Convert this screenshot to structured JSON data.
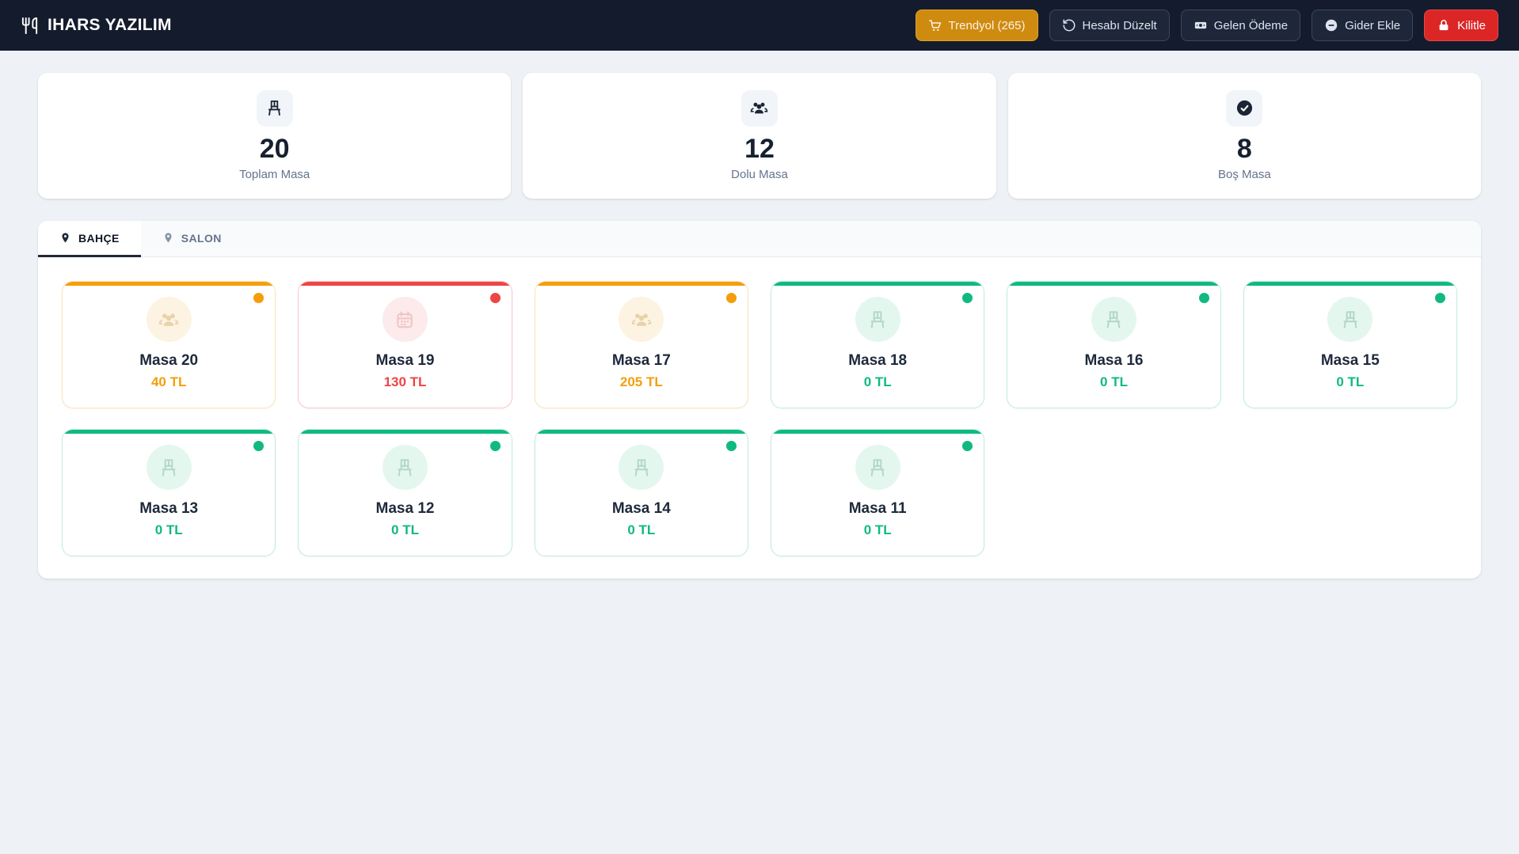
{
  "app": {
    "title": "IHARS YAZILIM"
  },
  "navbar": {
    "buttons": [
      {
        "label": "Trendyol (265)",
        "icon": "shopping-cart-icon",
        "style": "amber"
      },
      {
        "label": "Hesabı Düzelt",
        "icon": "rotate-ccw-icon",
        "style": "dark"
      },
      {
        "label": "Gelen Ödeme",
        "icon": "banknote-icon",
        "style": "dark"
      },
      {
        "label": "Gider Ekle",
        "icon": "minus-circle-icon",
        "style": "dark"
      },
      {
        "label": "Kilitle",
        "icon": "lock-icon",
        "style": "danger"
      }
    ]
  },
  "stats": [
    {
      "value": "20",
      "label": "Toplam Masa",
      "icon": "chair-icon"
    },
    {
      "value": "12",
      "label": "Dolu Masa",
      "icon": "users-icon"
    },
    {
      "value": "8",
      "label": "Boş Masa",
      "icon": "check-circle-icon"
    }
  ],
  "tabs": [
    {
      "label": "BAHÇE",
      "icon": "map-pin-icon",
      "active": true
    },
    {
      "label": "SALON",
      "icon": "map-pin-icon",
      "active": false
    }
  ],
  "tables": [
    {
      "name": "Masa 20",
      "amount": "40 TL",
      "status": "orange",
      "icon": "users"
    },
    {
      "name": "Masa 19",
      "amount": "130 TL",
      "status": "red",
      "icon": "calendar"
    },
    {
      "name": "Masa 17",
      "amount": "205 TL",
      "status": "orange",
      "icon": "users"
    },
    {
      "name": "Masa 18",
      "amount": "0 TL",
      "status": "green",
      "icon": "chair"
    },
    {
      "name": "Masa 16",
      "amount": "0 TL",
      "status": "green",
      "icon": "chair"
    },
    {
      "name": "Masa 15",
      "amount": "0 TL",
      "status": "green",
      "icon": "chair"
    },
    {
      "name": "Masa 13",
      "amount": "0 TL",
      "status": "green",
      "icon": "chair"
    },
    {
      "name": "Masa 12",
      "amount": "0 TL",
      "status": "green",
      "icon": "chair"
    },
    {
      "name": "Masa 14",
      "amount": "0 TL",
      "status": "green",
      "icon": "chair"
    },
    {
      "name": "Masa 11",
      "amount": "0 TL",
      "status": "green",
      "icon": "chair"
    }
  ],
  "colors": {
    "green": "#10b981",
    "orange": "#f59e0b",
    "red": "#ef4444",
    "navbar_bg": "#141b2c",
    "trendyol_button": "#cf8b10",
    "kilitle_button": "#dc2626",
    "page_bg": "#eef1f6"
  }
}
